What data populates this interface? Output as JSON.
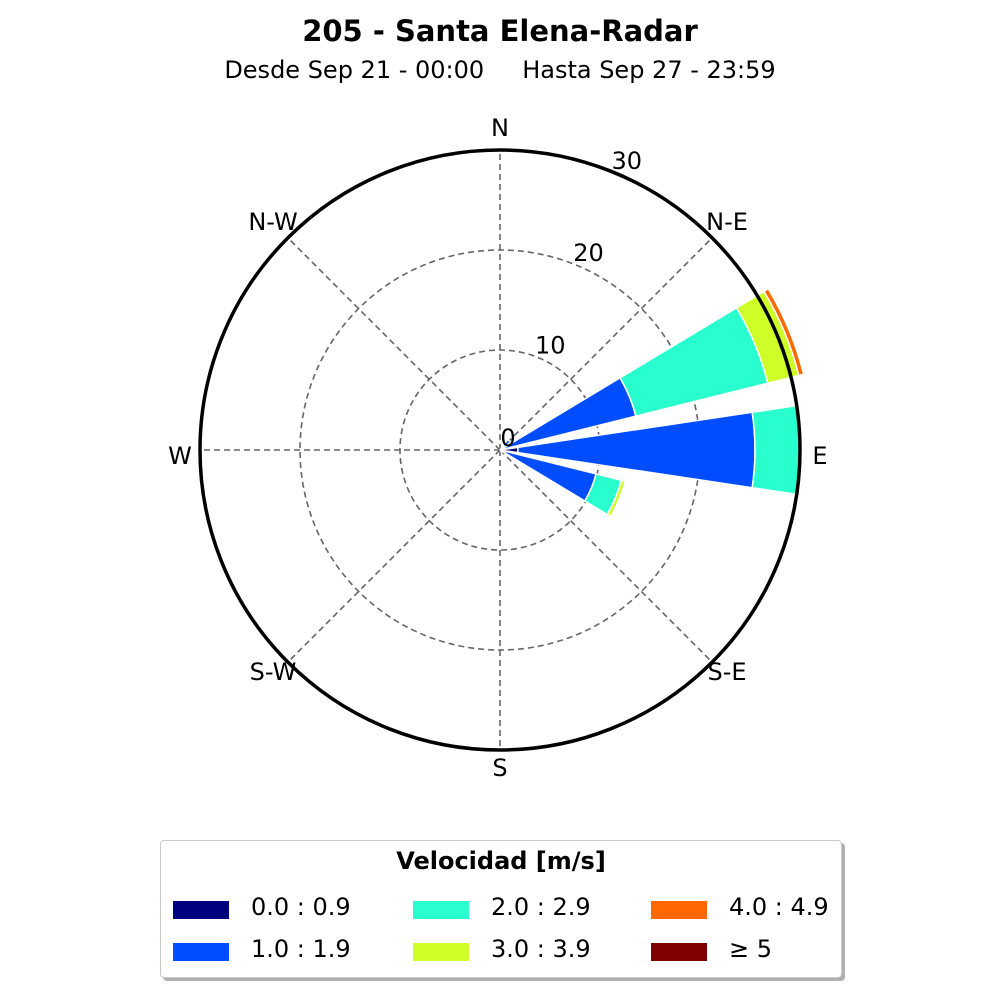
{
  "chart_data": {
    "type": "windrose",
    "title": "205 - Santa Elena-Radar",
    "subtitle": {
      "from": "Desde Sep 21 - 00:00",
      "to": "Hasta Sep 27 - 23:59"
    },
    "directions": [
      "N",
      "N-E",
      "E",
      "S-E",
      "S",
      "S-W",
      "W",
      "N-W"
    ],
    "radial_ticks": [
      0,
      10,
      20,
      30
    ],
    "radial_max": 30,
    "grid": true,
    "legend": {
      "title": "Velocidad [m/s]",
      "position": "bottom",
      "bins": [
        {
          "label": "0.0 : 0.9",
          "color": "#00007f"
        },
        {
          "label": "1.0 : 1.9",
          "color": "#004cff"
        },
        {
          "label": "2.0 : 2.9",
          "color": "#29ffce"
        },
        {
          "label": "3.0 : 3.9",
          "color": "#ceff29"
        },
        {
          "label": "4.0 : 4.9",
          "color": "#ff6800"
        },
        {
          "label": "≥  5",
          "color": "#7f0000"
        }
      ]
    },
    "sectors": [
      {
        "direction_deg": 45.0,
        "values": [
          0.4,
          0.9,
          0,
          0,
          0,
          0
        ]
      },
      {
        "direction_deg": 67.5,
        "values": [
          0.4,
          13.6,
          13.6,
          3.2,
          0.5,
          0
        ]
      },
      {
        "direction_deg": 90.0,
        "values": [
          1.8,
          23.7,
          4.5,
          0,
          0,
          0
        ]
      },
      {
        "direction_deg": 112.5,
        "values": [
          0.6,
          9.3,
          2.6,
          0.4,
          0,
          0
        ]
      },
      {
        "direction_deg": 135.0,
        "values": [
          0.3,
          0,
          0,
          0,
          0,
          0
        ]
      }
    ]
  }
}
